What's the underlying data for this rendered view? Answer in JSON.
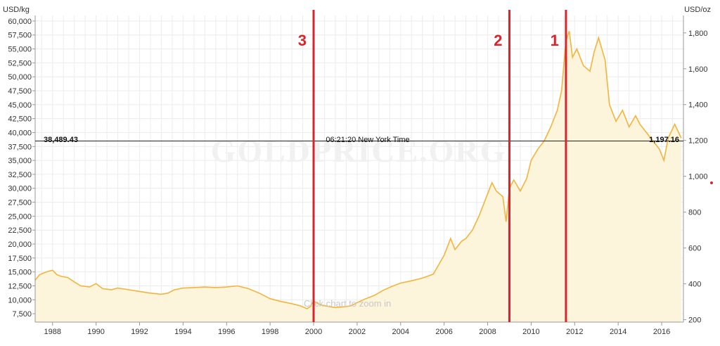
{
  "watermark": "GOLDPRICE.ORG",
  "zoom_hint": "Click chart to zoom in",
  "crosshair": {
    "left_value": "38,489.43",
    "time_label": "06:21:20 New York Time",
    "right_value": "1,197.16"
  },
  "markers": [
    {
      "label": "3",
      "year": 2000.0
    },
    {
      "label": "2",
      "year": 2009.0
    },
    {
      "label": "1",
      "year": 2011.6
    }
  ],
  "colors": {
    "line": "#f2b43c",
    "fill": "#fdf4dc",
    "marker": "#d6262b",
    "grid": "#ececec"
  },
  "chart_data": {
    "type": "area",
    "title": "",
    "xlabel": "",
    "ylabel_left": "USD/kg",
    "ylabel_right": "USD/oz",
    "x_range": [
      1987.2,
      2017.0
    ],
    "y_left_range": [
      6000,
      61000
    ],
    "y_right_range": [
      186.6,
      1897.3
    ],
    "x_ticks": [
      "1988",
      "1990",
      "1992",
      "1994",
      "1996",
      "1998",
      "2000",
      "2002",
      "2004",
      "2006",
      "2008",
      "2010",
      "2012",
      "2014",
      "2016"
    ],
    "y_left_ticks": [
      "7,500",
      "10,000",
      "12,500",
      "15,000",
      "17,500",
      "20,000",
      "22,500",
      "25,000",
      "27,500",
      "30,000",
      "32,500",
      "35,000",
      "37,500",
      "40,000",
      "42,500",
      "45,000",
      "47,500",
      "50,000",
      "52,500",
      "55,000",
      "57,500",
      "60,000"
    ],
    "y_right_ticks": [
      "200",
      "400",
      "600",
      "800",
      "1,000",
      "1,200",
      "1,400",
      "1,600",
      "1,800"
    ],
    "grid": true,
    "series": [
      {
        "unit": "USD/kg",
        "x": [
          1987.2,
          1987.4,
          1987.7,
          1988.0,
          1988.2,
          1988.4,
          1988.7,
          1989.0,
          1989.3,
          1989.7,
          1990.0,
          1990.3,
          1990.7,
          1991.0,
          1991.5,
          1992.0,
          1992.5,
          1993.0,
          1993.3,
          1993.6,
          1994.0,
          1994.5,
          1995.0,
          1995.5,
          1996.0,
          1996.5,
          1997.0,
          1997.5,
          1998.0,
          1998.5,
          1999.0,
          1999.4,
          1999.7,
          1999.85,
          2000.0,
          2000.3,
          2000.7,
          2001.0,
          2001.3,
          2001.7,
          2002.0,
          2002.4,
          2002.8,
          2003.2,
          2003.6,
          2004.0,
          2004.5,
          2005.0,
          2005.5,
          2006.0,
          2006.3,
          2006.5,
          2006.8,
          2007.0,
          2007.3,
          2007.6,
          2008.0,
          2008.2,
          2008.4,
          2008.7,
          2008.85,
          2009.0,
          2009.2,
          2009.5,
          2009.8,
          2010.0,
          2010.3,
          2010.6,
          2010.9,
          2011.2,
          2011.4,
          2011.6,
          2011.75,
          2011.9,
          2012.1,
          2012.4,
          2012.7,
          2012.9,
          2013.1,
          2013.4,
          2013.6,
          2013.9,
          2014.2,
          2014.5,
          2014.8,
          2015.0,
          2015.3,
          2015.6,
          2015.9,
          2016.1,
          2016.3,
          2016.6,
          2016.9
        ],
        "y": [
          13500,
          14500,
          15000,
          15300,
          14500,
          14200,
          14000,
          13200,
          12500,
          12300,
          12900,
          12000,
          11800,
          12100,
          11800,
          11500,
          11200,
          11000,
          11200,
          11800,
          12100,
          12200,
          12300,
          12200,
          12300,
          12500,
          12000,
          11200,
          10200,
          9700,
          9300,
          8900,
          8400,
          8800,
          9800,
          9100,
          8800,
          8600,
          8700,
          8900,
          9500,
          10200,
          10800,
          11700,
          12400,
          13000,
          13400,
          13900,
          14600,
          18000,
          21000,
          19000,
          20500,
          21000,
          22500,
          25000,
          29000,
          31000,
          29500,
          28500,
          24000,
          30000,
          31500,
          29500,
          31800,
          35000,
          37000,
          38500,
          41000,
          44000,
          47500,
          56500,
          58200,
          53500,
          55000,
          52000,
          51000,
          54500,
          57000,
          53000,
          45000,
          42000,
          44000,
          41000,
          43000,
          41500,
          40000,
          38500,
          37000,
          35000,
          39000,
          41500,
          39000
        ]
      }
    ]
  }
}
